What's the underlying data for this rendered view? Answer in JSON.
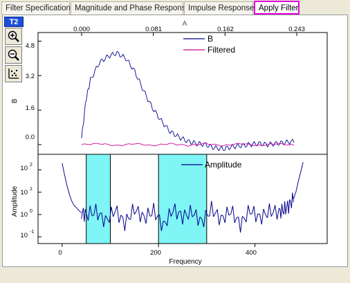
{
  "tabs": [
    {
      "label": "Filter Specification",
      "active": false
    },
    {
      "label": "Magnitude and Phase Response",
      "active": false
    },
    {
      "label": "Impulse Response",
      "active": false
    },
    {
      "label": "Apply Filter",
      "active": true
    }
  ],
  "layer_tag": "T2",
  "toolbar": {
    "zoom_in_icon": "zoom-in-icon",
    "zoom_out_icon": "zoom-out-icon",
    "rescale_icon": "rescale-icon"
  },
  "colors": {
    "series_b": "#00008b",
    "filtered": "#cc0099",
    "band_fill": "#7ff5f5",
    "layer_tag": "#1c4fd6",
    "active_tab_border": "#e000d8"
  },
  "chart_data": [
    {
      "type": "line",
      "top_axis_label": "A",
      "top_ticks": [
        "0.000",
        "0.081",
        "0.162",
        "0.243"
      ],
      "xlim": [
        0,
        0.243
      ],
      "ylabel": "B",
      "y_ticks": [
        "0.0",
        "1.6",
        "3.2",
        "4.8"
      ],
      "ylim": [
        -0.45,
        5.2
      ],
      "legend_position": "top-right",
      "series": [
        {
          "name": "B",
          "x": [
            0,
            0.005,
            0.01,
            0.02,
            0.03,
            0.04,
            0.05,
            0.06,
            0.07,
            0.08,
            0.09,
            0.1,
            0.11,
            0.12,
            0.13,
            0.14,
            0.15,
            0.16,
            0.17,
            0.18,
            0.19,
            0.2,
            0.21,
            0.22,
            0.23,
            0.24
          ],
          "y": [
            0.3,
            2.1,
            3.0,
            3.8,
            4.1,
            4.25,
            4.0,
            3.4,
            2.5,
            1.7,
            1.1,
            0.6,
            0.35,
            0.15,
            0.05,
            0.0,
            -0.15,
            -0.2,
            -0.1,
            -0.05,
            0.0,
            0.05,
            0.0,
            0.05,
            0.1,
            0.15
          ]
        },
        {
          "name": "Filtered",
          "x": [
            0,
            0.02,
            0.04,
            0.06,
            0.08,
            0.1,
            0.12,
            0.14,
            0.16,
            0.18,
            0.2,
            0.22,
            0.24
          ],
          "y": [
            0.0,
            0.05,
            -0.05,
            0.05,
            -0.05,
            0.05,
            -0.05,
            0.05,
            -0.05,
            0.05,
            -0.05,
            0.05,
            -0.03
          ]
        }
      ]
    },
    {
      "type": "line",
      "xlabel": "Frequency",
      "ylabel": "Amplitude",
      "x_ticks": [
        "0",
        "200",
        "400"
      ],
      "xlim": [
        -50,
        550
      ],
      "y_scale": "log",
      "y_ticks": [
        "10",
        "10",
        "10",
        "10"
      ],
      "y_tick_exponents": [
        "2",
        "1",
        "0",
        "-1"
      ],
      "ylim": [
        0.05,
        500
      ],
      "legend_position": "top-center",
      "bands": [
        [
          50,
          100
        ],
        [
          200,
          300
        ]
      ],
      "series": [
        {
          "name": "Amplitude",
          "x": [
            0,
            5,
            10,
            15,
            20,
            25,
            30,
            35,
            40,
            50,
            70,
            90,
            110,
            130,
            150,
            170,
            190,
            210,
            230,
            250,
            270,
            290,
            310,
            330,
            350,
            370,
            390,
            410,
            430,
            450,
            460,
            470,
            480,
            485,
            490,
            495,
            500
          ],
          "y": [
            200,
            60,
            20,
            8,
            4,
            2.5,
            2,
            1.5,
            1.2,
            1.0,
            1.4,
            0.5,
            1.6,
            0.4,
            1.8,
            0.7,
            1.5,
            0.3,
            1.7,
            0.8,
            1.3,
            0.45,
            1.8,
            0.6,
            1.5,
            0.35,
            1.6,
            0.7,
            1.4,
            1.3,
            1.6,
            2.5,
            5,
            10,
            30,
            80,
            220
          ]
        }
      ]
    }
  ]
}
